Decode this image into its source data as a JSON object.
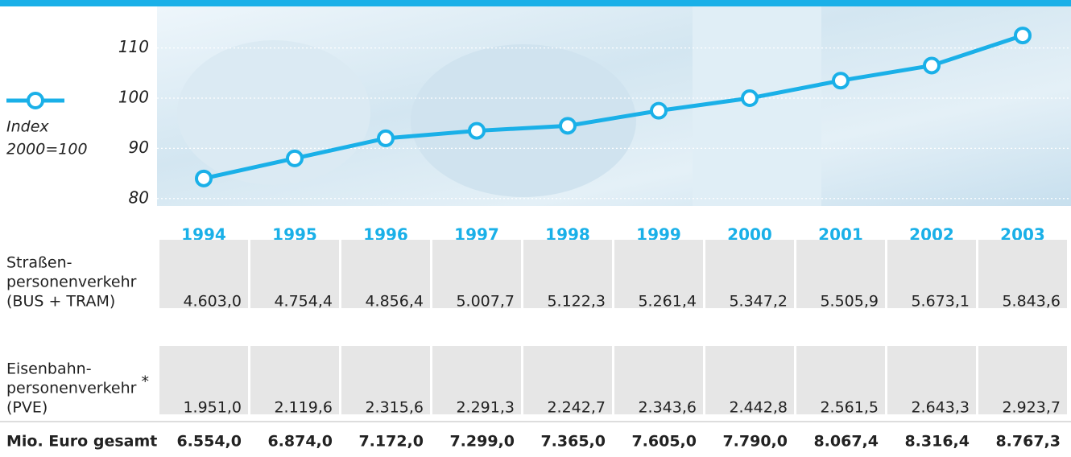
{
  "chart_data": {
    "type": "line",
    "categories": [
      "1994",
      "1995",
      "1996",
      "1997",
      "1998",
      "1999",
      "2000",
      "2001",
      "2002",
      "2003"
    ],
    "series": [
      {
        "name": "Index",
        "color": "#1ab0e8",
        "values": [
          84,
          88,
          92,
          93.5,
          94.5,
          97.5,
          100,
          103.5,
          106.5,
          112.5
        ]
      }
    ],
    "legend_note": "2000=100",
    "ylim": [
      79,
      117
    ],
    "yticks": [
      80,
      90,
      100,
      110
    ],
    "grid": true
  },
  "table": {
    "rows": [
      {
        "label": [
          "Straßen-",
          "personenverkehr",
          "(BUS + TRAM)"
        ],
        "footnote": null,
        "values": [
          "4.603,0",
          "4.754,4",
          "4.856,4",
          "5.007,7",
          "5.122,3",
          "5.261,4",
          "5.347,2",
          "5.505,9",
          "5.673,1",
          "5.843,6"
        ]
      },
      {
        "label": [
          "Eisenbahn-",
          "personenverkehr",
          "(PVE)"
        ],
        "footnote": "*",
        "values": [
          "1.951,0",
          "2.119,6",
          "2.315,6",
          "2.291,3",
          "2.242,7",
          "2.343,6",
          "2.442,8",
          "2.561,5",
          "2.643,3",
          "2.923,7"
        ]
      }
    ],
    "total": {
      "label": "Mio. Euro gesamt",
      "values": [
        "6.554,0",
        "6.874,0",
        "7.172,0",
        "7.299,0",
        "7.365,0",
        "7.605,0",
        "7.790,0",
        "8.067,4",
        "8.316,4",
        "8.767,3"
      ]
    }
  }
}
